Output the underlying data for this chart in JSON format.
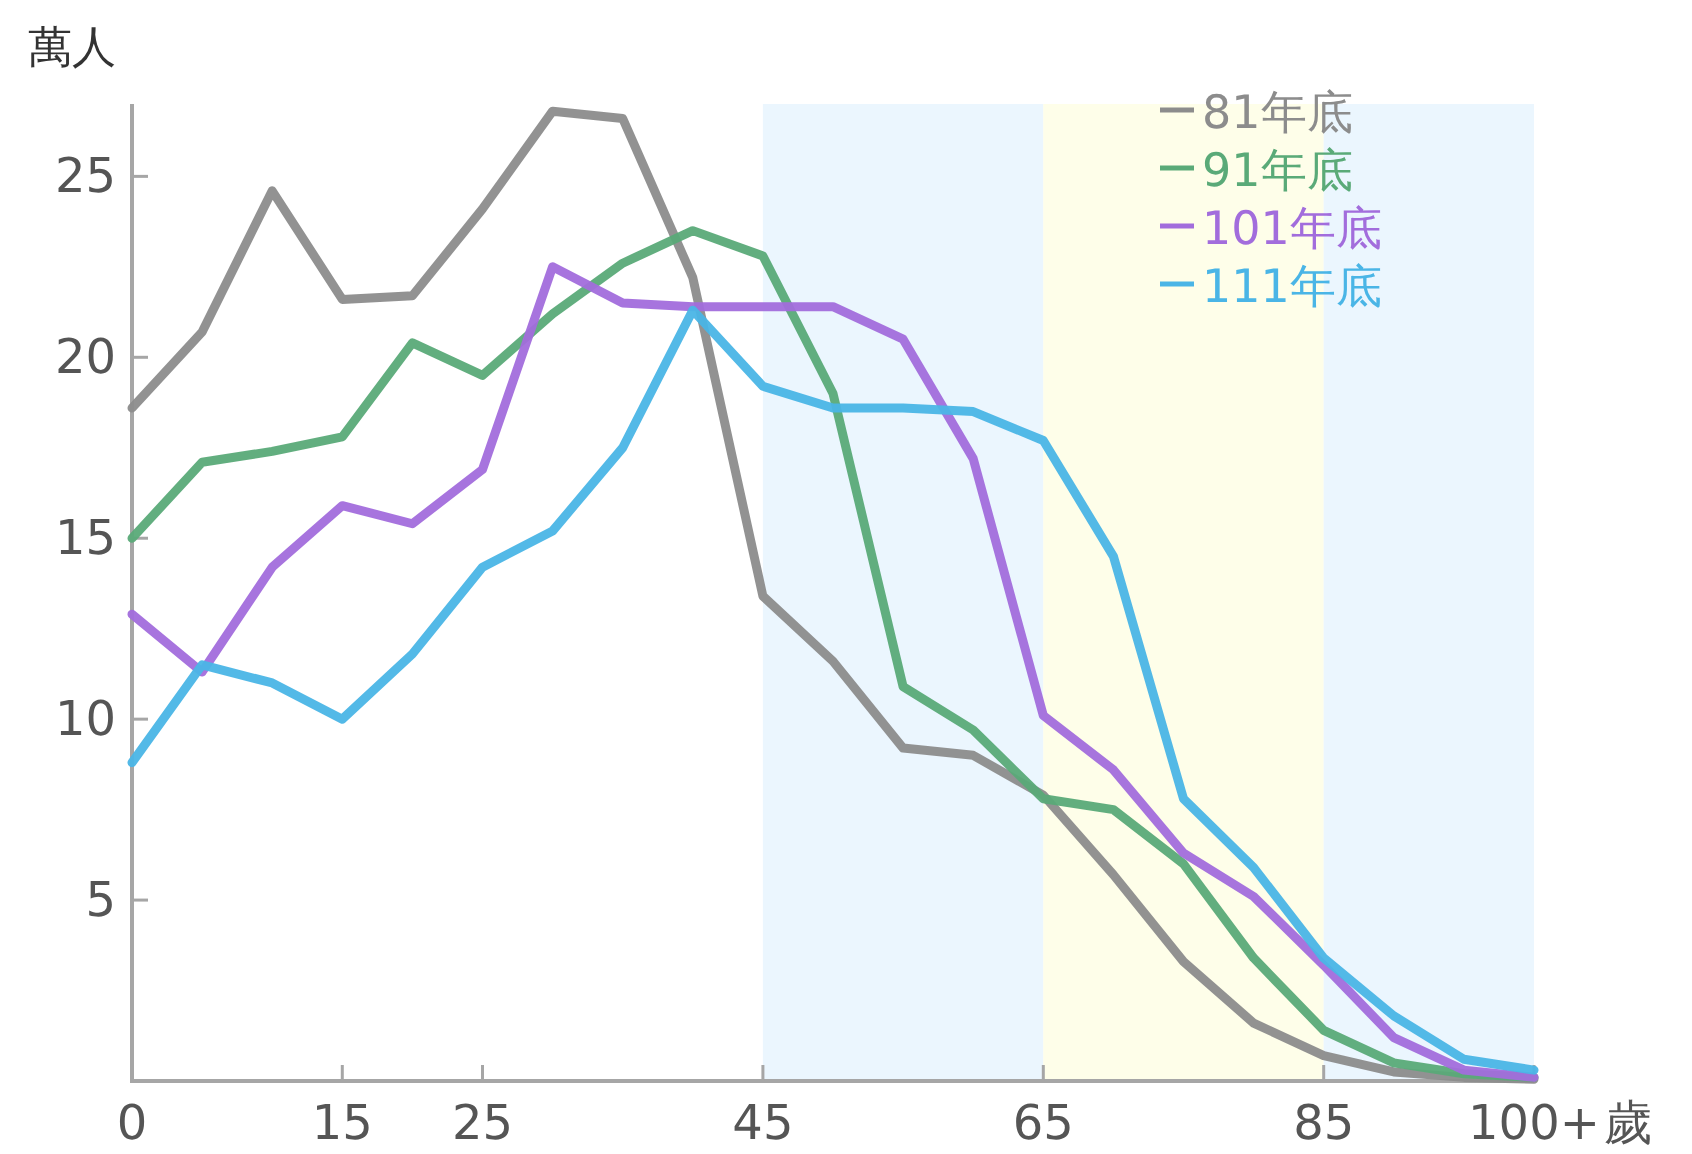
{
  "chart_data": {
    "type": "line",
    "ylabel": "萬人",
    "xlabel": "歲",
    "x": [
      0,
      5,
      10,
      15,
      20,
      25,
      30,
      35,
      40,
      45,
      50,
      55,
      60,
      65,
      70,
      75,
      80,
      85,
      90,
      95,
      100
    ],
    "xlim": [
      0,
      100
    ],
    "xticks": [
      0,
      15,
      25,
      45,
      65,
      85,
      {
        "value": 100,
        "label": "100+"
      }
    ],
    "ylim": [
      0,
      27
    ],
    "yticks": [
      5,
      10,
      15,
      20,
      25
    ],
    "grid": false,
    "legend": "top right",
    "marker": "none",
    "line_style": "solid",
    "bands": [
      {
        "axis": "x",
        "from": 45,
        "to": 65,
        "color": "#ebf6fe"
      },
      {
        "axis": "x",
        "from": 65,
        "to": 85,
        "color": "#fefee9"
      },
      {
        "axis": "x",
        "from": 85,
        "to": 100,
        "color": "#ebf6fe"
      }
    ],
    "series": [
      {
        "name": "81年底",
        "color": "#8c8c8c",
        "values": [
          18.6,
          20.7,
          24.6,
          21.6,
          21.7,
          24.1,
          26.8,
          26.6,
          22.2,
          13.4,
          11.6,
          9.2,
          9.0,
          7.9,
          5.7,
          3.3,
          1.6,
          0.7,
          0.25,
          0.1,
          0.05
        ]
      },
      {
        "name": "91年底",
        "color": "#5aaa78",
        "values": [
          15.0,
          17.1,
          17.4,
          17.8,
          20.4,
          19.5,
          21.2,
          22.6,
          23.5,
          22.8,
          19.0,
          10.9,
          9.7,
          7.8,
          7.5,
          6.0,
          3.4,
          1.4,
          0.5,
          0.2,
          0.1
        ]
      },
      {
        "name": "101年底",
        "color": "#a26ddc",
        "values": [
          12.9,
          11.3,
          14.2,
          15.9,
          15.4,
          16.9,
          22.5,
          21.5,
          21.4,
          21.4,
          21.4,
          20.5,
          17.2,
          10.1,
          8.6,
          6.3,
          5.1,
          3.2,
          1.2,
          0.3,
          0.1
        ]
      },
      {
        "name": "111年底",
        "color": "#4ab5e6",
        "values": [
          8.8,
          11.5,
          11.0,
          10.0,
          11.8,
          14.2,
          15.2,
          17.5,
          21.3,
          19.2,
          18.6,
          18.6,
          18.5,
          17.7,
          14.5,
          7.8,
          5.9,
          3.4,
          1.8,
          0.6,
          0.3
        ]
      }
    ]
  }
}
